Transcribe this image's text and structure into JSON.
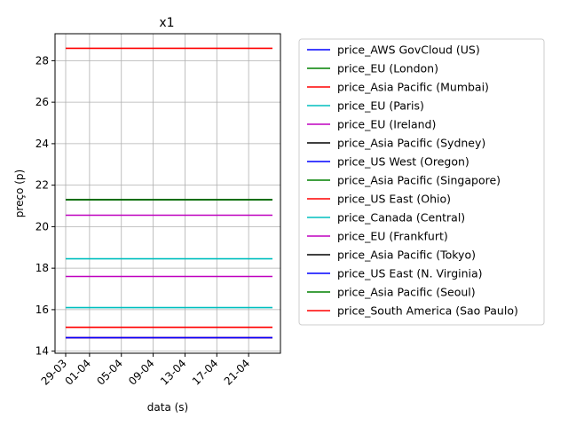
{
  "chart_data": {
    "type": "line",
    "title": "x1",
    "xlabel": "data (s)",
    "ylabel": "preço (p)",
    "x_ticks": [
      "29-03",
      "01-04",
      "05-04",
      "09-04",
      "13-04",
      "17-04",
      "21-04"
    ],
    "x_range": [
      "2018-03-29",
      "2018-04-25"
    ],
    "ylim": [
      13.9,
      29.3
    ],
    "y_ticks": [
      14,
      16,
      18,
      20,
      22,
      24,
      26,
      28
    ],
    "grid": true,
    "legend_position": "outside-right",
    "series": [
      {
        "name": "price_AWS GovCloud (US)",
        "color": "#0000ff",
        "x": [
          "2018-03-29",
          "2018-04-24"
        ],
        "values": [
          14.65,
          14.65
        ]
      },
      {
        "name": "price_EU (London)",
        "color": "#008000",
        "x": [
          "2018-03-29",
          "2018-04-24"
        ],
        "values": [
          21.3,
          21.3
        ]
      },
      {
        "name": "price_Asia Pacific (Mumbai)",
        "color": "#ff0000",
        "x": [
          "2018-03-29",
          "2018-04-24"
        ],
        "values": [
          15.15,
          15.15
        ]
      },
      {
        "name": "price_EU (Paris)",
        "color": "#00bfbf",
        "x": [
          "2018-03-29",
          "2018-04-24"
        ],
        "values": [
          18.45,
          18.45
        ]
      },
      {
        "name": "price_EU (Ireland)",
        "color": "#bf00bf",
        "x": [
          "2018-03-29",
          "2018-04-24"
        ],
        "values": [
          17.6,
          17.6
        ]
      },
      {
        "name": "price_Asia Pacific (Sydney)",
        "color": "#000000",
        "x": [
          "2018-03-29",
          "2018-04-24"
        ],
        "values": [
          21.3,
          21.3
        ]
      },
      {
        "name": "price_US West (Oregon)",
        "color": "#0000ff",
        "x": [
          "2018-03-29",
          "2018-04-24"
        ],
        "values": [
          14.65,
          14.65
        ]
      },
      {
        "name": "price_Asia Pacific (Singapore)",
        "color": "#008000",
        "x": [
          "2018-03-29",
          "2018-04-24"
        ],
        "values": [
          21.3,
          21.3
        ]
      },
      {
        "name": "price_US East (Ohio)",
        "color": "#ff0000",
        "x": [
          "2018-03-29",
          "2018-04-24"
        ],
        "values": [
          14.65,
          14.65
        ]
      },
      {
        "name": "price_Canada (Central)",
        "color": "#00bfbf",
        "x": [
          "2018-03-29",
          "2018-04-24"
        ],
        "values": [
          16.1,
          16.1
        ]
      },
      {
        "name": "price_EU (Frankfurt)",
        "color": "#bf00bf",
        "x": [
          "2018-03-29",
          "2018-04-24"
        ],
        "values": [
          20.55,
          20.55
        ]
      },
      {
        "name": "price_Asia Pacific (Tokyo)",
        "color": "#000000",
        "x": [
          "2018-03-29",
          "2018-04-24"
        ],
        "values": [
          21.3,
          21.3
        ]
      },
      {
        "name": "price_US East (N. Virginia)",
        "color": "#0000ff",
        "x": [
          "2018-03-29",
          "2018-04-24"
        ],
        "values": [
          14.65,
          14.65
        ]
      },
      {
        "name": "price_Asia Pacific (Seoul)",
        "color": "#008000",
        "x": [
          "2018-03-29",
          "2018-04-24"
        ],
        "values": [
          21.3,
          21.3
        ]
      },
      {
        "name": "price_South America (Sao Paulo)",
        "color": "#ff0000",
        "x": [
          "2018-03-29",
          "2018-04-24"
        ],
        "values": [
          28.6,
          28.6
        ]
      }
    ]
  }
}
